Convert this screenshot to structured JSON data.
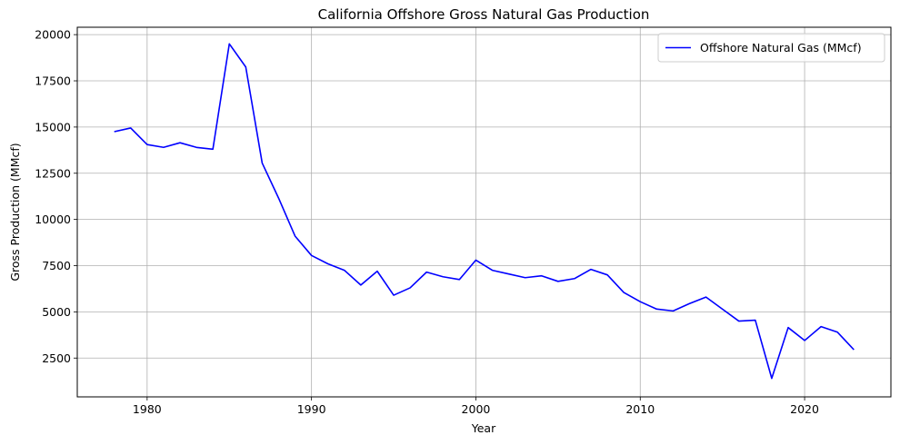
{
  "chart_data": {
    "type": "line",
    "title": "California Offshore Gross Natural Gas Production",
    "xlabel": "Year",
    "ylabel": "Gross Production (MMcf)",
    "xlim": [
      1975.75,
      2025.25
    ],
    "ylim": [
      400,
      20400
    ],
    "xticks": [
      1980,
      1990,
      2000,
      2010,
      2020
    ],
    "yticks": [
      2500,
      5000,
      7500,
      10000,
      12500,
      15000,
      17500,
      20000
    ],
    "grid": true,
    "legend_position": "top-right",
    "series": [
      {
        "name": "Offshore Natural Gas (MMcf)",
        "color": "#0000ff",
        "x": [
          1978,
          1979,
          1980,
          1981,
          1982,
          1983,
          1984,
          1985,
          1986,
          1987,
          1988,
          1989,
          1990,
          1991,
          1992,
          1993,
          1994,
          1995,
          1996,
          1997,
          1998,
          1999,
          2000,
          2001,
          2002,
          2003,
          2004,
          2005,
          2006,
          2007,
          2008,
          2009,
          2010,
          2011,
          2012,
          2013,
          2014,
          2015,
          2016,
          2017,
          2018,
          2019,
          2020,
          2021,
          2022,
          2023
        ],
        "values": [
          14750,
          14950,
          14050,
          13900,
          14150,
          13900,
          13800,
          19500,
          18250,
          13050,
          11150,
          9100,
          8050,
          7600,
          7250,
          6450,
          7200,
          5900,
          6300,
          7150,
          6900,
          6750,
          7800,
          7250,
          7050,
          6850,
          6950,
          6650,
          6800,
          7300,
          7000,
          6050,
          5550,
          5150,
          5050,
          5450,
          5800,
          5150,
          4500,
          4550,
          1400,
          4150,
          3450,
          4200,
          3900,
          2950
        ]
      }
    ]
  }
}
